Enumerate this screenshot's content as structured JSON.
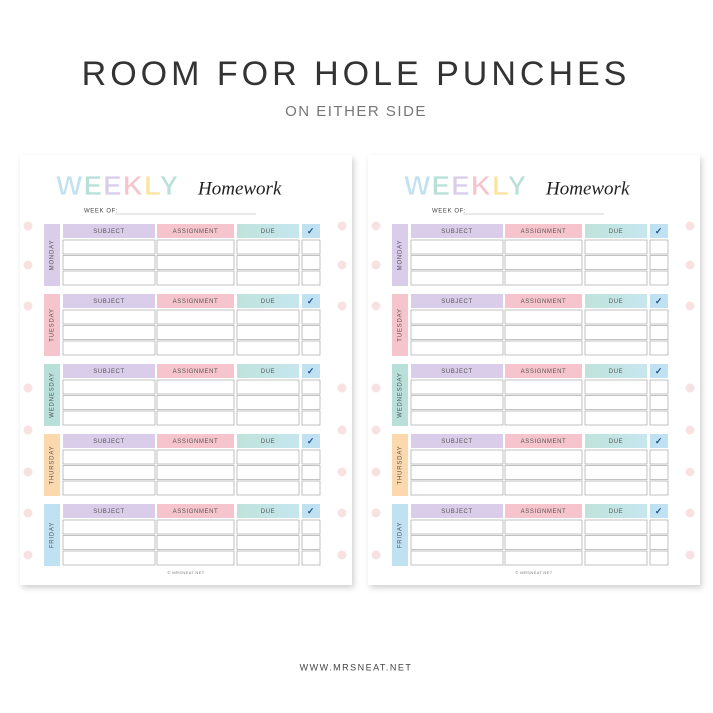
{
  "header": {
    "title": "ROOM FOR HOLE PUNCHES",
    "subtitle": "ON EITHER SIDE"
  },
  "pages": [
    {
      "title_word": "WEEKLY",
      "title_script": "Homework",
      "week_of": "WEEK OF:",
      "columns": [
        "SUBJECT",
        "ASSIGNMENT",
        "DUE",
        "✓"
      ],
      "days": [
        "MONDAY",
        "TUESDAY",
        "WEDNESDAY",
        "THURSDAY",
        "FRIDAY"
      ],
      "footer": "© MRSNEAT.NET"
    },
    {
      "title_word": "WEEKLY",
      "title_script": "Homework",
      "week_of": "WEEK OF:",
      "columns": [
        "SUBJECT",
        "ASSIGNMENT",
        "DUE",
        "✓"
      ],
      "days": [
        "MONDAY",
        "TUESDAY",
        "WEDNESDAY",
        "THURSDAY",
        "FRIDAY"
      ],
      "footer": "© MRSNEAT.NET"
    }
  ],
  "footer": "WWW.MRSNEAT.NET"
}
